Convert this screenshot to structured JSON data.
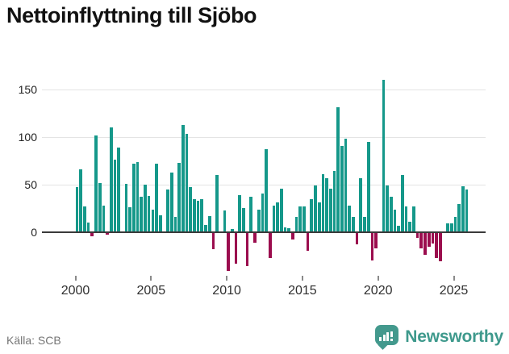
{
  "title": "Nettoinflyttning till Sjöbo",
  "footer": {
    "source": "Källa: SCB",
    "brand": "Newsworthy"
  },
  "chart_data": {
    "type": "bar",
    "title": "Nettoinflyttning till Sjöbo",
    "x_start": "2000-Q1",
    "x_end": "2025-Q4",
    "frequency": "quarterly",
    "grid": "horizontal",
    "y_ticks": [
      0,
      50,
      100,
      150
    ],
    "ylim": [
      -45,
      165
    ],
    "x_tick_labels": [
      "2000",
      "2005",
      "2010",
      "2015",
      "2020",
      "2025"
    ],
    "colors": {
      "positive": "#15988a",
      "negative": "#9b0d4e"
    },
    "series": [
      {
        "year": 2000,
        "q": [
          47,
          66,
          27,
          10
        ]
      },
      {
        "year": 2001,
        "q": [
          -3,
          102,
          52,
          28
        ]
      },
      {
        "year": 2002,
        "q": [
          -2,
          110,
          76,
          89
        ]
      },
      {
        "year": 2003,
        "q": [
          0,
          51,
          26,
          72
        ]
      },
      {
        "year": 2004,
        "q": [
          74,
          37,
          50,
          38
        ]
      },
      {
        "year": 2005,
        "q": [
          24,
          72,
          18,
          0
        ]
      },
      {
        "year": 2006,
        "q": [
          45,
          63,
          16,
          73
        ]
      },
      {
        "year": 2007,
        "q": [
          113,
          103,
          47,
          35
        ]
      },
      {
        "year": 2008,
        "q": [
          33,
          35,
          8,
          17
        ]
      },
      {
        "year": 2009,
        "q": [
          -17,
          60,
          0,
          23
        ]
      },
      {
        "year": 2010,
        "q": [
          -40,
          3,
          -32,
          39
        ]
      },
      {
        "year": 2011,
        "q": [
          25,
          -35,
          37,
          -10
        ]
      },
      {
        "year": 2012,
        "q": [
          24,
          41,
          87,
          -26
        ]
      },
      {
        "year": 2013,
        "q": [
          28,
          31,
          46,
          5
        ]
      },
      {
        "year": 2014,
        "q": [
          4,
          -7,
          16,
          27
        ]
      },
      {
        "year": 2015,
        "q": [
          27,
          -19,
          35,
          49
        ]
      },
      {
        "year": 2016,
        "q": [
          31,
          61,
          57,
          46
        ]
      },
      {
        "year": 2017,
        "q": [
          64,
          131,
          91,
          98
        ]
      },
      {
        "year": 2018,
        "q": [
          28,
          16,
          -12,
          57
        ]
      },
      {
        "year": 2019,
        "q": [
          16,
          95,
          -29,
          -16
        ]
      },
      {
        "year": 2020,
        "q": [
          0,
          160,
          49,
          37
        ]
      },
      {
        "year": 2021,
        "q": [
          24,
          7,
          60,
          27
        ]
      },
      {
        "year": 2022,
        "q": [
          11,
          27,
          -5,
          -16
        ]
      },
      {
        "year": 2023,
        "q": [
          -23,
          -14,
          -11,
          -26
        ]
      },
      {
        "year": 2024,
        "q": [
          -30,
          0,
          9,
          9
        ]
      },
      {
        "year": 2025,
        "q": [
          16,
          30,
          48,
          45
        ]
      }
    ]
  }
}
